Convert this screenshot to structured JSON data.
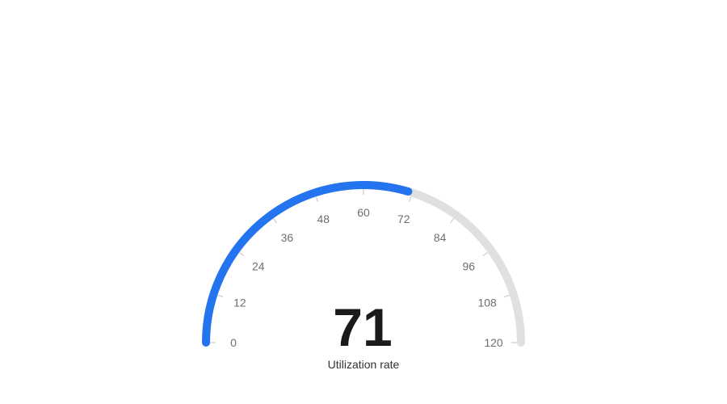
{
  "chart_data": {
    "type": "gauge",
    "min": 0,
    "max": 120,
    "value": 71,
    "value_label": "71",
    "caption": "Utilization rate",
    "ticks": [
      0,
      12,
      24,
      36,
      48,
      60,
      72,
      84,
      96,
      108,
      120
    ],
    "tick_labels": [
      "0",
      "12",
      "24",
      "36",
      "48",
      "60",
      "72",
      "84",
      "96",
      "108",
      "120"
    ],
    "colors": {
      "progress": "#2374ee",
      "track": "#e0e0e0",
      "tick": "#cccccc",
      "tick_label": "#6e6e6e",
      "value": "#1a1a1a"
    }
  }
}
